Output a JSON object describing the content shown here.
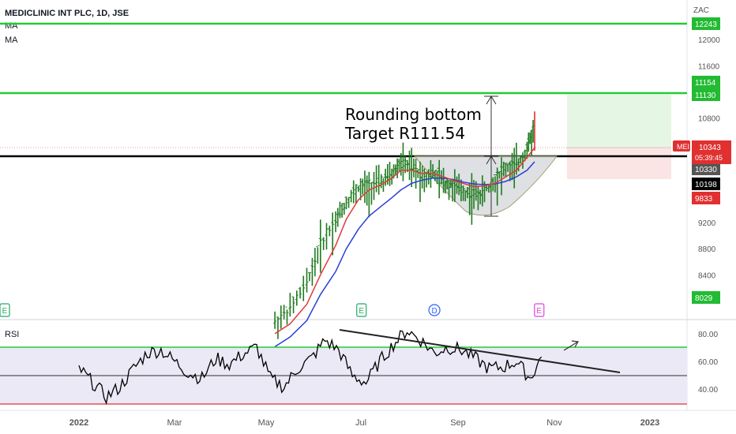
{
  "header": {
    "symbol_line": "MEDICLINIC INT PLC, 1D, JSE",
    "indicators": [
      "MA",
      "MA"
    ]
  },
  "price_axis": {
    "currency": "ZAC",
    "ticks": [
      "12000",
      "11600",
      "10800",
      "9200",
      "8800",
      "8400"
    ],
    "tags": [
      {
        "text": "12243",
        "bg": "#22bb33",
        "fg": "#ffffff",
        "value": 12243
      },
      {
        "text": "11154",
        "bg": "#22bb33",
        "fg": "#ffffff",
        "value": 11154
      },
      {
        "text": "11130",
        "bg": "#22bb33",
        "fg": "#ffffff",
        "value": 11130
      },
      {
        "text": "10330",
        "bg": "#555555",
        "fg": "#ffffff",
        "value": 10330
      },
      {
        "text": "10198",
        "bg": "#000000",
        "fg": "#ffffff",
        "value": 10198
      },
      {
        "text": "9833",
        "bg": "#e03030",
        "fg": "#ffffff",
        "value": 9833
      },
      {
        "text": "8029",
        "bg": "#22bb33",
        "fg": "#ffffff",
        "value": 8029
      }
    ],
    "last_price": {
      "ticker": "MEI",
      "price": "10343",
      "countdown": "05:39:45",
      "value": 10343
    }
  },
  "annotation": {
    "line1": "Rounding bottom",
    "line2": "Target R111.54"
  },
  "event_markers": [
    {
      "label": "E",
      "color": "#22aa66",
      "month": 0.0
    },
    {
      "label": "E",
      "color": "#22aa66",
      "month": 6.2
    },
    {
      "label": "D",
      "color": "#2962ff",
      "month": 7.8
    },
    {
      "label": "E",
      "color": "#dd44dd",
      "month": 10.1
    }
  ],
  "rsi": {
    "label": "RSI",
    "ticks": [
      "80.00",
      "60.00",
      "40.00"
    ],
    "upper": 70,
    "middle": 50,
    "lower": 30
  },
  "time_axis": [
    "2022",
    "Mar",
    "May",
    "Jul",
    "Sep",
    "Nov",
    "2023"
  ],
  "colors": {
    "green_line": "#22cc33",
    "support_line": "#000000",
    "ma_fast": "#e03a3a",
    "ma_slow": "#2a3fd6",
    "bar": "#1f7a1f",
    "rsi_line": "#000000",
    "rsi_band": "#ece9f7"
  },
  "chart_data": {
    "type": "line",
    "title": "MEDICLINIC INT PLC, 1D, JSE",
    "ylabel": "ZAC",
    "ylim": [
      7500,
      12400
    ],
    "horizontal_levels": {
      "resistance_green": [
        12243,
        11130
      ],
      "support_black": 10198,
      "target": 11154,
      "stop": 9833
    },
    "series": [
      {
        "name": "price",
        "x": [
          "2022-05-10",
          "2022-05-20",
          "2022-06-01",
          "2022-06-10",
          "2022-06-20",
          "2022-06-27",
          "2022-07-05",
          "2022-07-12",
          "2022-07-20",
          "2022-07-27",
          "2022-08-03",
          "2022-08-10",
          "2022-08-17",
          "2022-08-24",
          "2022-08-31",
          "2022-09-07",
          "2022-09-14",
          "2022-09-21",
          "2022-09-28",
          "2022-10-05",
          "2022-10-12",
          "2022-10-19",
          "2022-10-26",
          "2022-11-01"
        ],
        "values": [
          7700,
          7900,
          8300,
          8900,
          9250,
          9550,
          9750,
          9780,
          9850,
          9950,
          10150,
          10050,
          9950,
          9980,
          9850,
          9800,
          9700,
          9650,
          9700,
          9900,
          10050,
          10100,
          10350,
          10700
        ]
      },
      {
        "name": "MA",
        "values": [
          7500,
          7650,
          7950,
          8400,
          8850,
          9250,
          9550,
          9700,
          9780,
          9880,
          10000,
          10000,
          9950,
          9950,
          9900,
          9850,
          9800,
          9750,
          9760,
          9800,
          9900,
          10000,
          10200,
          10343
        ]
      },
      {
        "name": "MA",
        "values": [
          7300,
          7450,
          7700,
          8100,
          8450,
          8800,
          9100,
          9300,
          9450,
          9580,
          9700,
          9800,
          9850,
          9880,
          9880,
          9860,
          9820,
          9790,
          9780,
          9790,
          9830,
          9900,
          10000,
          10130
        ]
      }
    ],
    "rsi": {
      "name": "RSI",
      "x_months": [
        0,
        0.3,
        0.6,
        0.9,
        1.2,
        1.5,
        1.8,
        2.1,
        2.4,
        2.7,
        3.0,
        3.3,
        3.6,
        3.9,
        4.2,
        4.5,
        4.8,
        5.1,
        5.4,
        5.7,
        6.0,
        6.3,
        6.6,
        6.9,
        7.2,
        7.5,
        7.8,
        8.1,
        8.4,
        8.7,
        9.0,
        9.3,
        9.6,
        9.9,
        10.2
      ],
      "values": [
        55,
        45,
        35,
        42,
        55,
        66,
        68,
        60,
        52,
        48,
        62,
        58,
        65,
        70,
        48,
        42,
        55,
        62,
        75,
        68,
        50,
        45,
        60,
        72,
        82,
        75,
        66,
        70,
        68,
        62,
        55,
        56,
        60,
        48,
        66
      ],
      "ylim": [
        25,
        90
      ]
    },
    "trendline_rsi": {
      "from": 82,
      "to": 52
    },
    "xlabel": "",
    "x_ticks": [
      "2022",
      "Mar",
      "May",
      "Jul",
      "Sep",
      "Nov",
      "2023"
    ]
  }
}
